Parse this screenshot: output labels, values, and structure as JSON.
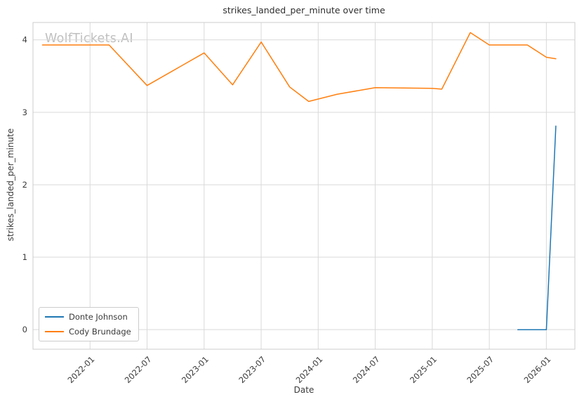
{
  "chart_data": {
    "type": "line",
    "title": "strikes_landed_per_minute over time",
    "xlabel": "Date",
    "ylabel": "strikes_landed_per_minute",
    "watermark": "WolfTickets.AI",
    "grid": true,
    "grid_color": "#d9d9d9",
    "frame_color": "#cccccc",
    "tick_color": "#3a3a3a",
    "legend_position": "lower left",
    "x_ticks": [
      "2022-01",
      "2022-07",
      "2023-01",
      "2023-07",
      "2024-01",
      "2024-07",
      "2025-01",
      "2025-07",
      "2026-01"
    ],
    "y_ticks": [
      0,
      1,
      2,
      3,
      4
    ],
    "xlim": [
      "2021-07",
      "2026-04"
    ],
    "ylim": [
      -0.27,
      4.24
    ],
    "series": [
      {
        "name": "Donte Johnson",
        "color": "#1f77b4",
        "points": [
          [
            "2025-10",
            0.0
          ],
          [
            "2026-01",
            0.0
          ],
          [
            "2026-02",
            2.81
          ]
        ]
      },
      {
        "name": "Cody Brundage",
        "color": "#ff7f0e",
        "points": [
          [
            "2021-08",
            3.93
          ],
          [
            "2022-03",
            3.93
          ],
          [
            "2022-07",
            3.37
          ],
          [
            "2023-01",
            3.82
          ],
          [
            "2023-04",
            3.38
          ],
          [
            "2023-07",
            3.97
          ],
          [
            "2023-10",
            3.35
          ],
          [
            "2023-12",
            3.15
          ],
          [
            "2024-03",
            3.25
          ],
          [
            "2024-07",
            3.34
          ],
          [
            "2025-01",
            3.33
          ],
          [
            "2025-02",
            3.32
          ],
          [
            "2025-05",
            4.1
          ],
          [
            "2025-07",
            3.93
          ],
          [
            "2025-11",
            3.93
          ],
          [
            "2026-01",
            3.76
          ],
          [
            "2026-02",
            3.74
          ]
        ]
      }
    ]
  }
}
